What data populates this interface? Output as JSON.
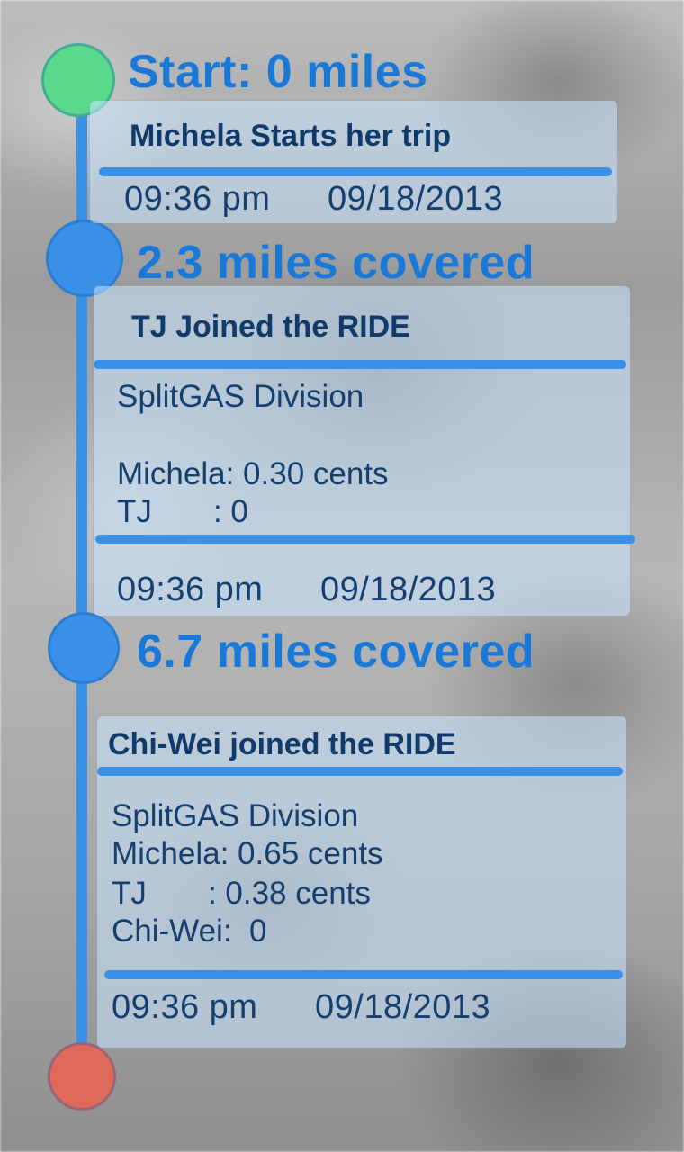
{
  "milestones": [
    {
      "label": "Start: 0 miles"
    },
    {
      "label": "2.3 miles covered"
    },
    {
      "label": "6.7 miles covered"
    }
  ],
  "cards": [
    {
      "title": "Michela Starts her trip",
      "time": "09:36 pm",
      "date": "09/18/2013"
    },
    {
      "title": "TJ Joined the RIDE",
      "lines": [
        "SplitGAS Division",
        "",
        "Michela: 0.30 cents",
        "TJ       : 0"
      ],
      "time": "09:36 pm",
      "date": "09/18/2013"
    },
    {
      "title": "Chi-Wei joined the RIDE",
      "lines": [
        "SplitGAS Division",
        "Michela: 0.65 cents",
        "TJ       : 0.38 cents",
        "Chi-Wei:  0"
      ],
      "time": "09:36 pm",
      "date": "09/18/2013"
    }
  ],
  "colors": {
    "accent": "#3a8fe6",
    "start": "#5bd98a",
    "end": "#e06a5a",
    "milestone_text": "#1a78d8"
  }
}
